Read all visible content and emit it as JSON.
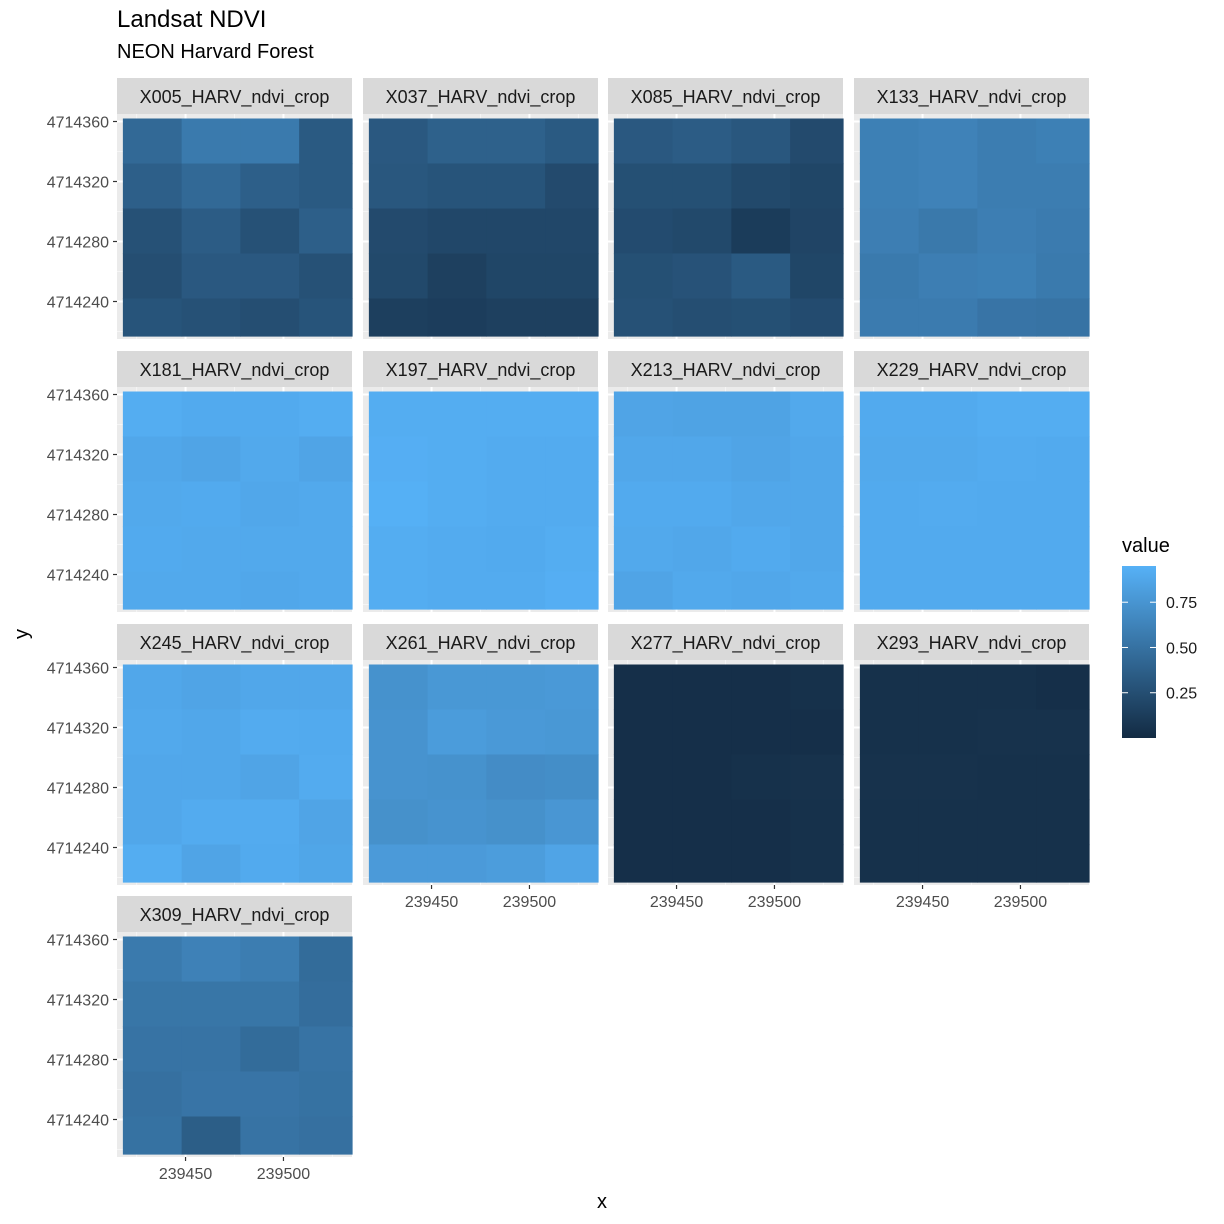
{
  "chart_data": {
    "type": "heatmap",
    "title": "Landsat NDVI",
    "subtitle": "NEON Harvard Forest",
    "xlabel": "x",
    "ylabel": "y",
    "x_ticks": [
      239450,
      239500
    ],
    "y_ticks": [
      4714360,
      4714320,
      4714280,
      4714240
    ],
    "xlim": [
      239415,
      239535
    ],
    "ylim": [
      4714215,
      4714365
    ],
    "grid": true,
    "legend": {
      "title": "value",
      "position": "right",
      "breaks": [
        0.75,
        0.5,
        0.25
      ],
      "range": [
        0.0,
        0.95
      ],
      "low_color": "#132B43",
      "high_color": "#56B1F7"
    },
    "panels": [
      {
        "name": "X005_HARV_ndvi_crop",
        "values": [
          [
            0.44,
            0.56,
            0.56,
            0.33
          ],
          [
            0.37,
            0.44,
            0.37,
            0.33
          ],
          [
            0.27,
            0.35,
            0.27,
            0.37
          ],
          [
            0.25,
            0.32,
            0.32,
            0.27
          ],
          [
            0.29,
            0.27,
            0.25,
            0.29
          ]
        ]
      },
      {
        "name": "X037_HARV_ndvi_crop",
        "values": [
          [
            0.32,
            0.38,
            0.38,
            0.33
          ],
          [
            0.31,
            0.29,
            0.29,
            0.22
          ],
          [
            0.22,
            0.2,
            0.2,
            0.2
          ],
          [
            0.21,
            0.15,
            0.19,
            0.19
          ],
          [
            0.14,
            0.13,
            0.15,
            0.15
          ]
        ]
      },
      {
        "name": "X085_HARV_ndvi_crop",
        "values": [
          [
            0.32,
            0.35,
            0.31,
            0.22
          ],
          [
            0.26,
            0.26,
            0.21,
            0.19
          ],
          [
            0.23,
            0.21,
            0.12,
            0.18
          ],
          [
            0.26,
            0.28,
            0.33,
            0.19
          ],
          [
            0.27,
            0.25,
            0.26,
            0.23
          ]
        ]
      },
      {
        "name": "X133_HARV_ndvi_crop",
        "values": [
          [
            0.6,
            0.62,
            0.58,
            0.6
          ],
          [
            0.6,
            0.62,
            0.58,
            0.58
          ],
          [
            0.59,
            0.55,
            0.59,
            0.57
          ],
          [
            0.56,
            0.59,
            0.6,
            0.56
          ],
          [
            0.57,
            0.57,
            0.52,
            0.51
          ]
        ]
      },
      {
        "name": "X181_HARV_ndvi_crop",
        "values": [
          [
            0.92,
            0.9,
            0.9,
            0.92
          ],
          [
            0.88,
            0.86,
            0.89,
            0.86
          ],
          [
            0.89,
            0.9,
            0.88,
            0.89
          ],
          [
            0.9,
            0.89,
            0.89,
            0.89
          ],
          [
            0.89,
            0.89,
            0.88,
            0.89
          ]
        ]
      },
      {
        "name": "X197_HARV_ndvi_crop",
        "values": [
          [
            0.92,
            0.92,
            0.92,
            0.92
          ],
          [
            0.93,
            0.92,
            0.91,
            0.91
          ],
          [
            0.94,
            0.92,
            0.91,
            0.91
          ],
          [
            0.92,
            0.91,
            0.9,
            0.92
          ],
          [
            0.92,
            0.91,
            0.91,
            0.93
          ]
        ]
      },
      {
        "name": "X213_HARV_ndvi_crop",
        "values": [
          [
            0.86,
            0.85,
            0.85,
            0.89
          ],
          [
            0.88,
            0.88,
            0.86,
            0.88
          ],
          [
            0.9,
            0.9,
            0.88,
            0.88
          ],
          [
            0.89,
            0.88,
            0.9,
            0.88
          ],
          [
            0.86,
            0.89,
            0.88,
            0.89
          ]
        ]
      },
      {
        "name": "X229_HARV_ndvi_crop",
        "values": [
          [
            0.9,
            0.9,
            0.92,
            0.92
          ],
          [
            0.89,
            0.89,
            0.91,
            0.9
          ],
          [
            0.9,
            0.91,
            0.9,
            0.9
          ],
          [
            0.9,
            0.9,
            0.9,
            0.9
          ],
          [
            0.9,
            0.9,
            0.9,
            0.9
          ]
        ]
      },
      {
        "name": "X245_HARV_ndvi_crop",
        "values": [
          [
            0.88,
            0.86,
            0.88,
            0.88
          ],
          [
            0.89,
            0.88,
            0.91,
            0.9
          ],
          [
            0.88,
            0.88,
            0.86,
            0.91
          ],
          [
            0.88,
            0.91,
            0.91,
            0.86
          ],
          [
            0.92,
            0.86,
            0.9,
            0.87
          ]
        ]
      },
      {
        "name": "X261_HARV_ndvi_crop",
        "values": [
          [
            0.73,
            0.77,
            0.77,
            0.78
          ],
          [
            0.74,
            0.8,
            0.78,
            0.77
          ],
          [
            0.74,
            0.73,
            0.69,
            0.7
          ],
          [
            0.72,
            0.74,
            0.72,
            0.76
          ],
          [
            0.79,
            0.79,
            0.81,
            0.86
          ]
        ]
      },
      {
        "name": "X277_HARV_ndvi_crop",
        "values": [
          [
            0.03,
            0.03,
            0.03,
            0.04
          ],
          [
            0.03,
            0.03,
            0.03,
            0.03
          ],
          [
            0.03,
            0.03,
            0.04,
            0.05
          ],
          [
            0.03,
            0.03,
            0.03,
            0.04
          ],
          [
            0.03,
            0.03,
            0.03,
            0.04
          ]
        ]
      },
      {
        "name": "X293_HARV_ndvi_crop",
        "values": [
          [
            0.04,
            0.04,
            0.04,
            0.03
          ],
          [
            0.04,
            0.04,
            0.05,
            0.05
          ],
          [
            0.05,
            0.05,
            0.04,
            0.04
          ],
          [
            0.04,
            0.04,
            0.04,
            0.04
          ],
          [
            0.04,
            0.04,
            0.04,
            0.04
          ]
        ]
      },
      {
        "name": "X309_HARV_ndvi_crop",
        "values": [
          [
            0.56,
            0.61,
            0.58,
            0.46
          ],
          [
            0.53,
            0.53,
            0.53,
            0.47
          ],
          [
            0.51,
            0.51,
            0.46,
            0.51
          ],
          [
            0.49,
            0.52,
            0.52,
            0.5
          ],
          [
            0.5,
            0.36,
            0.51,
            0.49
          ]
        ]
      }
    ]
  }
}
